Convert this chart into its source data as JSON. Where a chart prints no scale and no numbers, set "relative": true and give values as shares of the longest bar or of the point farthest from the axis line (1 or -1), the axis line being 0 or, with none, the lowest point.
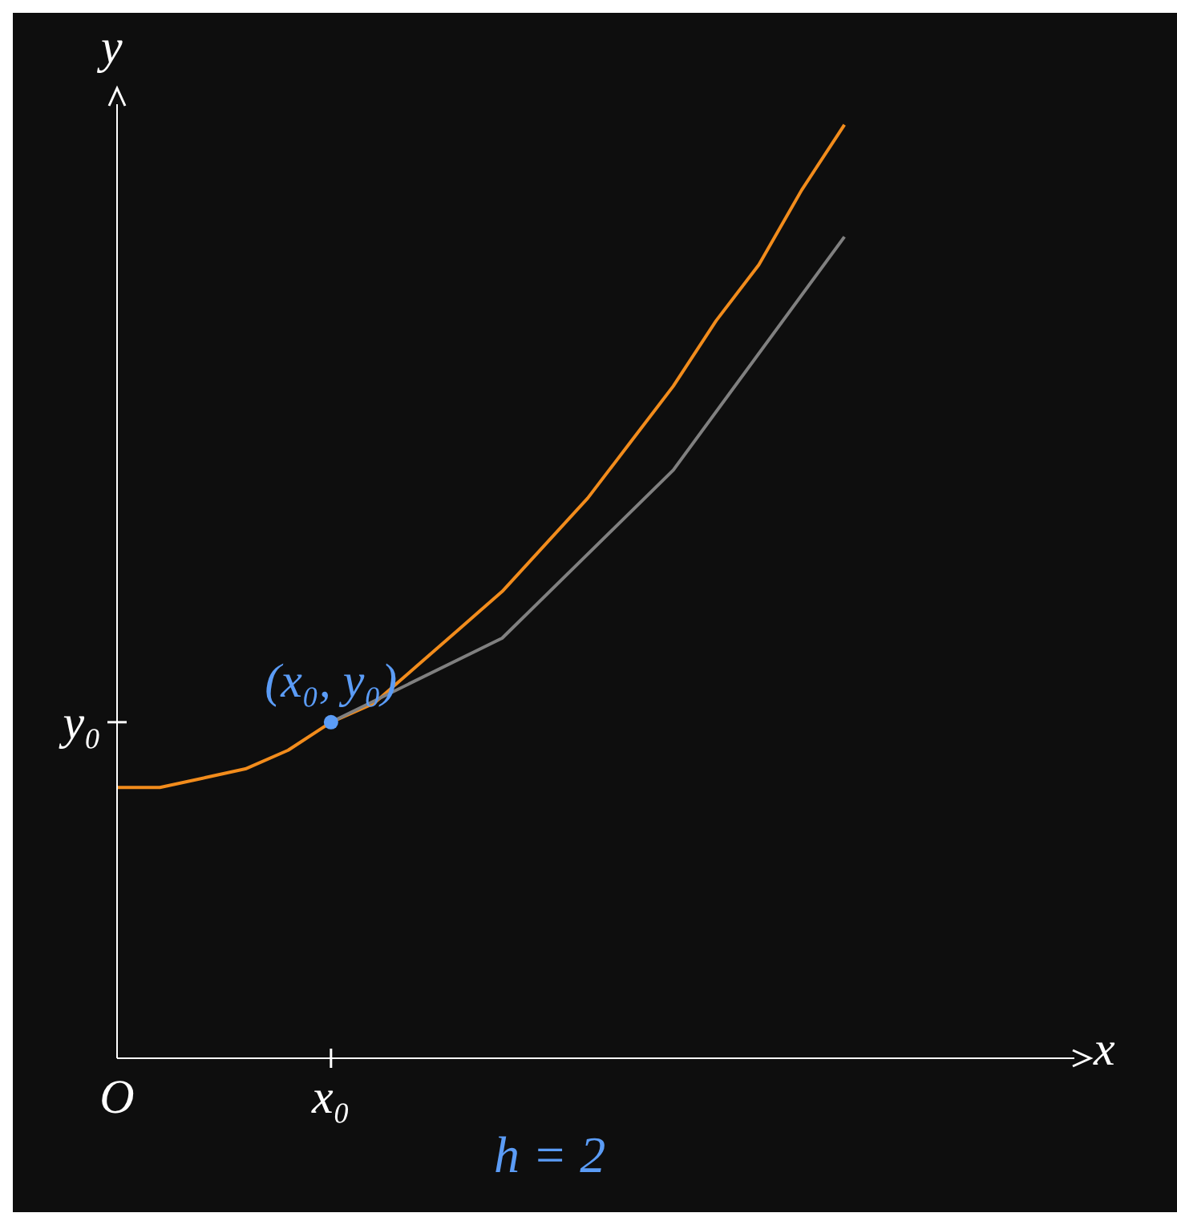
{
  "chart_data": {
    "type": "line",
    "relative": true,
    "xlabel": "x",
    "ylabel": "y",
    "categories": [
      "O",
      null,
      null,
      null,
      null,
      "x₀",
      null,
      null,
      null,
      null,
      null,
      null,
      null,
      null,
      null,
      null,
      null,
      null
    ],
    "series": [
      {
        "color": "#f28c1c",
        "marker": "none",
        "values": [
          0.29,
          0.29,
          0.3,
          0.31,
          0.33,
          0.36,
          0.38,
          0.42,
          0.46,
          0.5,
          0.55,
          0.6,
          0.66,
          0.72,
          0.79,
          0.85,
          0.93,
          1
        ]
      },
      {
        "color": "#808080",
        "marker": "none",
        "values": [
          null,
          null,
          null,
          null,
          null,
          0.36,
          null,
          null,
          null,
          0.45,
          null,
          null,
          null,
          0.63,
          null,
          null,
          null,
          0.88
        ]
      },
      {
        "type": "scatter",
        "color": "#5b9cf6",
        "marker": "circle",
        "values": [
          null,
          null,
          null,
          null,
          null,
          0.36,
          null,
          null,
          null,
          null,
          null,
          null,
          null,
          null,
          null,
          null,
          null,
          null
        ]
      }
    ],
    "annotations": [
      {
        "text": "(x₀, y₀)",
        "x": "x₀",
        "y": 0.36
      },
      "y₀",
      "h = 2"
    ]
  }
}
